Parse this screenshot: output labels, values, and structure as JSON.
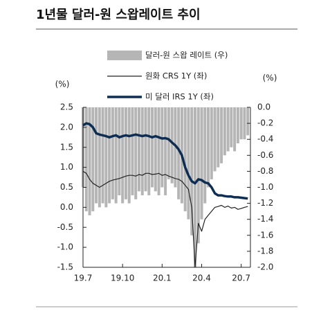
{
  "chart_data": {
    "type": "bar-line",
    "title": "1년물 달러-원 스왑레이트 추이",
    "y_unit": "(%)",
    "y2_unit": "(%)",
    "x": [
      0,
      0.25,
      0.5,
      0.75,
      1,
      1.25,
      1.5,
      1.75,
      2,
      2.25,
      2.5,
      2.75,
      3,
      3.25,
      3.5,
      3.75,
      4,
      4.25,
      4.5,
      4.75,
      5,
      5.25,
      5.5,
      5.75,
      6,
      6.25,
      6.5,
      6.75,
      7,
      7.25,
      7.5,
      7.75,
      8,
      8.25,
      8.5,
      8.75,
      9,
      9.25,
      9.5,
      9.75,
      10,
      10.25,
      10.5,
      10.75,
      11,
      11.25,
      11.5,
      11.75,
      12,
      12.25,
      12.5
    ],
    "xlim": [
      0,
      12.7
    ],
    "xticks": [
      {
        "value": 0,
        "label": "19.7"
      },
      {
        "value": 3,
        "label": "19.10"
      },
      {
        "value": 6,
        "label": "20.1"
      },
      {
        "value": 9,
        "label": "20.4"
      },
      {
        "value": 12,
        "label": "20.7"
      }
    ],
    "ylim": [
      -1.5,
      2.5
    ],
    "yticks": [
      2.5,
      {
        "value": 2,
        "label": "2.0"
      },
      1.5,
      {
        "value": 1,
        "label": "1.0"
      },
      0.5,
      {
        "value": 0,
        "label": "0.0"
      },
      -0.5,
      {
        "value": -1,
        "label": "-1.0"
      },
      -1.5
    ],
    "y2lim": [
      -2,
      0
    ],
    "y2ticks": [
      {
        "value": 0,
        "label": "0.0"
      },
      -0.2,
      -0.4,
      -0.6,
      -0.8,
      {
        "value": -1,
        "label": "-1.0"
      },
      -1.2,
      -1.4,
      -1.6,
      -1.8,
      {
        "value": -2,
        "label": "-2.0"
      }
    ],
    "series": [
      {
        "name": "달러-원 스왑 레이트 (우)",
        "type": "bar",
        "axis": "y2",
        "color": "#b5b5b5",
        "values": [
          -1.0,
          -1.3,
          -1.35,
          -1.3,
          -1.2,
          -1.25,
          -1.2,
          -1.25,
          -1.2,
          -1.15,
          -1.2,
          -1.1,
          -1.2,
          -1.15,
          -1.2,
          -1.1,
          -1.15,
          -1.05,
          -1.1,
          -1.05,
          -1.1,
          -1.0,
          -1.05,
          -1.1,
          -1.0,
          -1.1,
          -0.9,
          -0.95,
          -1.0,
          -1.15,
          -1.2,
          -1.3,
          -1.4,
          -1.6,
          -2.0,
          -1.7,
          -1.4,
          -1.2,
          -1.0,
          -0.9,
          -0.8,
          -0.75,
          -0.7,
          -0.6,
          -0.55,
          -0.5,
          -0.55,
          -0.45,
          -0.4,
          -0.4,
          -0.35
        ]
      },
      {
        "name": "원화 CRS 1Y (좌)",
        "type": "line",
        "color": "#222222",
        "width": 1.2,
        "values": [
          0.9,
          0.85,
          0.7,
          0.6,
          0.55,
          0.5,
          0.55,
          0.6,
          0.65,
          0.68,
          0.7,
          0.72,
          0.75,
          0.78,
          0.8,
          0.8,
          0.78,
          0.82,
          0.8,
          0.85,
          0.85,
          0.82,
          0.83,
          0.85,
          0.8,
          0.82,
          0.78,
          0.75,
          0.72,
          0.7,
          0.65,
          0.55,
          0.45,
          0.0,
          -1.5,
          -0.4,
          -0.6,
          -0.3,
          -0.2,
          -0.1,
          0.0,
          0.02,
          0.05,
          0.0,
          0.03,
          -0.02,
          0.0,
          -0.05,
          -0.03,
          0.0,
          0.02
        ]
      },
      {
        "name": "미 달러 IRS 1Y (좌)",
        "type": "line",
        "color": "#0d2d52",
        "width": 3.5,
        "values": [
          2.05,
          2.1,
          2.08,
          2.0,
          1.85,
          1.82,
          1.8,
          1.78,
          1.75,
          1.78,
          1.8,
          1.75,
          1.78,
          1.8,
          1.78,
          1.8,
          1.82,
          1.8,
          1.78,
          1.8,
          1.78,
          1.75,
          1.78,
          1.75,
          1.72,
          1.73,
          1.7,
          1.62,
          1.55,
          1.45,
          1.3,
          1.0,
          0.8,
          0.65,
          0.6,
          0.7,
          0.68,
          0.62,
          0.6,
          0.5,
          0.35,
          0.3,
          0.3,
          0.28,
          0.27,
          0.27,
          0.25,
          0.25,
          0.24,
          0.23,
          0.22
        ]
      }
    ]
  }
}
